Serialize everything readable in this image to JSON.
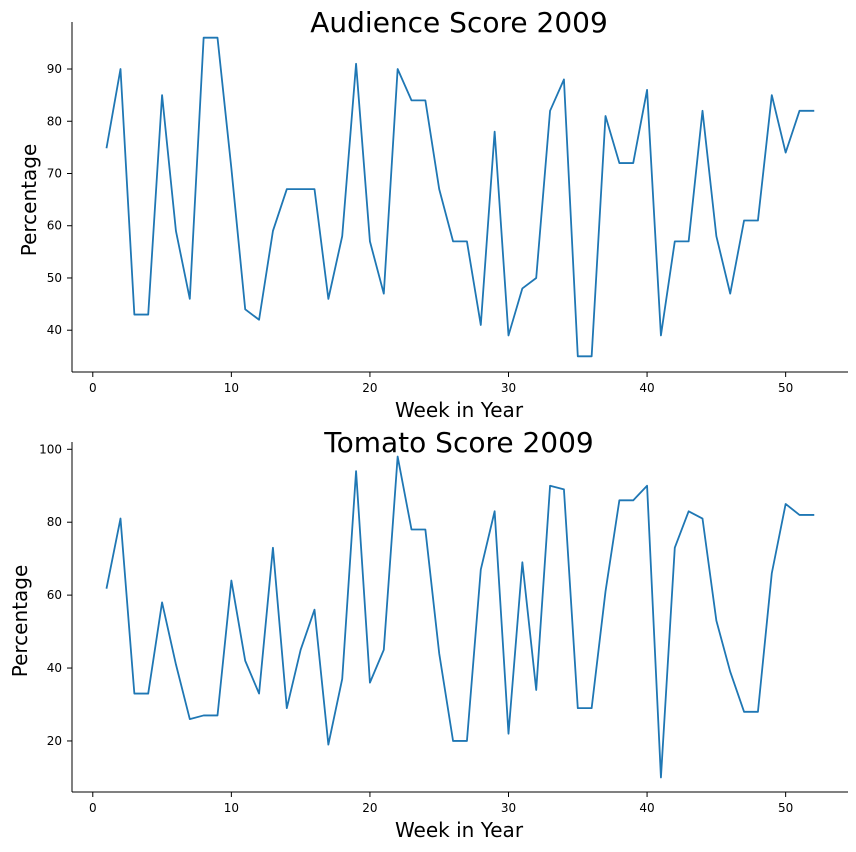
{
  "chart_data": [
    {
      "type": "line",
      "title": "Audience Score 2009",
      "xlabel": "Week in Year",
      "ylabel": "Percentage",
      "xlim": [
        -1.5,
        54.5
      ],
      "ylim": [
        32,
        99
      ],
      "xticks": [
        0,
        10,
        20,
        30,
        40,
        50
      ],
      "yticks": [
        40,
        50,
        60,
        70,
        80,
        90
      ],
      "color": "#1f77b4",
      "grid": false,
      "x": [
        1,
        2,
        3,
        4,
        5,
        6,
        7,
        8,
        9,
        10,
        11,
        12,
        13,
        14,
        15,
        16,
        17,
        18,
        19,
        20,
        21,
        22,
        23,
        24,
        25,
        26,
        27,
        28,
        29,
        30,
        31,
        32,
        33,
        34,
        35,
        36,
        37,
        38,
        39,
        40,
        41,
        42,
        43,
        44,
        45,
        46,
        47,
        48,
        49,
        50,
        51,
        52
      ],
      "y": [
        75,
        90,
        43,
        43,
        85,
        59,
        46,
        96,
        96,
        71,
        44,
        42,
        59,
        67,
        67,
        67,
        46,
        58,
        91,
        57,
        47,
        90,
        84,
        84,
        67,
        57,
        57,
        41,
        78,
        39,
        48,
        50,
        82,
        88,
        35,
        35,
        81,
        72,
        72,
        86,
        39,
        57,
        57,
        82,
        58,
        47,
        61,
        61,
        85,
        74,
        82,
        82
      ]
    },
    {
      "type": "line",
      "title": "Tomato Score 2009",
      "xlabel": "Week in Year",
      "ylabel": "Percentage",
      "xlim": [
        -1.5,
        54.5
      ],
      "ylim": [
        6,
        102
      ],
      "xticks": [
        0,
        10,
        20,
        30,
        40,
        50
      ],
      "yticks": [
        20,
        40,
        60,
        80,
        100
      ],
      "color": "#1f77b4",
      "grid": false,
      "x": [
        1,
        2,
        3,
        4,
        5,
        6,
        7,
        8,
        9,
        10,
        11,
        12,
        13,
        14,
        15,
        16,
        17,
        18,
        19,
        20,
        21,
        22,
        23,
        24,
        25,
        26,
        27,
        28,
        29,
        30,
        31,
        32,
        33,
        34,
        35,
        36,
        37,
        38,
        39,
        40,
        41,
        42,
        43,
        44,
        45,
        46,
        47,
        48,
        49,
        50,
        51,
        52
      ],
      "y": [
        62,
        81,
        33,
        33,
        58,
        41,
        26,
        27,
        27,
        64,
        42,
        33,
        73,
        29,
        45,
        56,
        19,
        37,
        94,
        36,
        45,
        98,
        78,
        78,
        44,
        20,
        20,
        67,
        83,
        22,
        69,
        34,
        90,
        89,
        29,
        29,
        61,
        86,
        86,
        90,
        10,
        73,
        83,
        81,
        53,
        39,
        28,
        28,
        66,
        85,
        82,
        82
      ]
    }
  ]
}
